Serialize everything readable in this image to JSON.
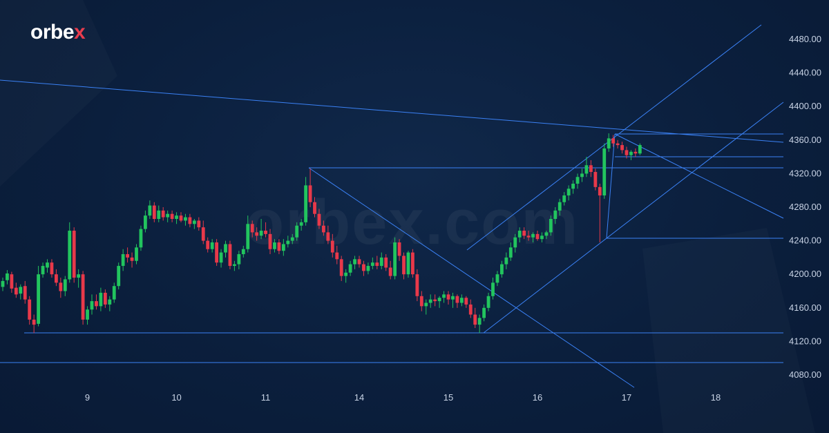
{
  "brand": {
    "logo_text_main": "orbe",
    "logo_text_accent": "x",
    "watermark": "orbex.com"
  },
  "colors": {
    "background": "#0b1f3d",
    "bull": "#22c55e",
    "bear": "#e8394a",
    "trendline": "#3b82f6",
    "axis_text": "#c9d4e6"
  },
  "chart_data": {
    "type": "candlestick",
    "title": "",
    "xlabel": "",
    "ylabel": "",
    "ylim": [
      4060,
      4500
    ],
    "y_ticks": [
      "4480.00",
      "4440.00",
      "4400.00",
      "4360.00",
      "4320.00",
      "4280.00",
      "4240.00",
      "4200.00",
      "4160.00",
      "4120.00",
      "4080.00"
    ],
    "y_tick_values": [
      4480,
      4440,
      4400,
      4360,
      4320,
      4280,
      4240,
      4200,
      4160,
      4120,
      4080
    ],
    "x_ticks": [
      "9",
      "10",
      "11",
      "14",
      "15",
      "16",
      "17",
      "18"
    ],
    "x_tick_index": [
      19,
      39,
      59,
      80,
      100,
      120,
      140,
      160
    ],
    "candles": [
      [
        4185,
        4196,
        4180,
        4192
      ],
      [
        4193,
        4205,
        4188,
        4201
      ],
      [
        4200,
        4203,
        4178,
        4183
      ],
      [
        4184,
        4190,
        4172,
        4176
      ],
      [
        4177,
        4188,
        4170,
        4185
      ],
      [
        4186,
        4192,
        4165,
        4170
      ],
      [
        4170,
        4174,
        4140,
        4146
      ],
      [
        4146,
        4152,
        4130,
        4140
      ],
      [
        4141,
        4210,
        4138,
        4200
      ],
      [
        4200,
        4214,
        4196,
        4210
      ],
      [
        4208,
        4218,
        4202,
        4214
      ],
      [
        4214,
        4218,
        4196,
        4200
      ],
      [
        4200,
        4206,
        4186,
        4190
      ],
      [
        4190,
        4196,
        4172,
        4180
      ],
      [
        4180,
        4198,
        4174,
        4194
      ],
      [
        4194,
        4262,
        4190,
        4252
      ],
      [
        4252,
        4256,
        4190,
        4196
      ],
      [
        4196,
        4206,
        4184,
        4200
      ],
      [
        4200,
        4204,
        4140,
        4146
      ],
      [
        4146,
        4162,
        4140,
        4158
      ],
      [
        4158,
        4176,
        4152,
        4168
      ],
      [
        4168,
        4176,
        4158,
        4162
      ],
      [
        4162,
        4184,
        4156,
        4178
      ],
      [
        4178,
        4182,
        4160,
        4164
      ],
      [
        4164,
        4174,
        4156,
        4170
      ],
      [
        4170,
        4190,
        4166,
        4186
      ],
      [
        4186,
        4214,
        4182,
        4210
      ],
      [
        4210,
        4230,
        4204,
        4224
      ],
      [
        4224,
        4232,
        4214,
        4220
      ],
      [
        4220,
        4226,
        4208,
        4216
      ],
      [
        4216,
        4236,
        4212,
        4232
      ],
      [
        4232,
        4258,
        4228,
        4254
      ],
      [
        4254,
        4276,
        4250,
        4270
      ],
      [
        4270,
        4288,
        4266,
        4282
      ],
      [
        4282,
        4286,
        4262,
        4266
      ],
      [
        4266,
        4282,
        4262,
        4276
      ],
      [
        4276,
        4280,
        4264,
        4268
      ],
      [
        4268,
        4276,
        4262,
        4272
      ],
      [
        4272,
        4276,
        4262,
        4266
      ],
      [
        4266,
        4274,
        4260,
        4270
      ],
      [
        4270,
        4274,
        4262,
        4264
      ],
      [
        4264,
        4272,
        4258,
        4268
      ],
      [
        4268,
        4272,
        4256,
        4260
      ],
      [
        4260,
        4266,
        4254,
        4264
      ],
      [
        4264,
        4268,
        4252,
        4256
      ],
      [
        4256,
        4264,
        4236,
        4240
      ],
      [
        4240,
        4244,
        4226,
        4230
      ],
      [
        4230,
        4242,
        4226,
        4238
      ],
      [
        4238,
        4242,
        4210,
        4214
      ],
      [
        4214,
        4230,
        4208,
        4226
      ],
      [
        4226,
        4240,
        4220,
        4236
      ],
      [
        4236,
        4240,
        4206,
        4210
      ],
      [
        4210,
        4216,
        4204,
        4212
      ],
      [
        4212,
        4228,
        4206,
        4224
      ],
      [
        4224,
        4234,
        4220,
        4230
      ],
      [
        4230,
        4270,
        4226,
        4260
      ],
      [
        4260,
        4264,
        4244,
        4250
      ],
      [
        4250,
        4256,
        4240,
        4246
      ],
      [
        4246,
        4266,
        4242,
        4252
      ],
      [
        4252,
        4262,
        4244,
        4248
      ],
      [
        4248,
        4254,
        4224,
        4230
      ],
      [
        4230,
        4242,
        4226,
        4238
      ],
      [
        4238,
        4242,
        4224,
        4228
      ],
      [
        4228,
        4242,
        4222,
        4236
      ],
      [
        4236,
        4246,
        4232,
        4240
      ],
      [
        4240,
        4248,
        4236,
        4244
      ],
      [
        4244,
        4262,
        4240,
        4258
      ],
      [
        4258,
        4266,
        4252,
        4262
      ],
      [
        4262,
        4316,
        4258,
        4306
      ],
      [
        4306,
        4326,
        4280,
        4286
      ],
      [
        4286,
        4292,
        4268,
        4272
      ],
      [
        4272,
        4278,
        4254,
        4258
      ],
      [
        4258,
        4264,
        4246,
        4250
      ],
      [
        4250,
        4258,
        4236,
        4240
      ],
      [
        4240,
        4248,
        4220,
        4226
      ],
      [
        4226,
        4234,
        4212,
        4218
      ],
      [
        4218,
        4222,
        4192,
        4198
      ],
      [
        4198,
        4206,
        4190,
        4202
      ],
      [
        4202,
        4216,
        4198,
        4212
      ],
      [
        4212,
        4222,
        4206,
        4218
      ],
      [
        4218,
        4222,
        4208,
        4212
      ],
      [
        4212,
        4216,
        4198,
        4204
      ],
      [
        4204,
        4214,
        4200,
        4210
      ],
      [
        4210,
        4220,
        4206,
        4214
      ],
      [
        4214,
        4222,
        4206,
        4210
      ],
      [
        4210,
        4226,
        4206,
        4220
      ],
      [
        4220,
        4224,
        4204,
        4208
      ],
      [
        4208,
        4216,
        4194,
        4198
      ],
      [
        4198,
        4244,
        4194,
        4238
      ],
      [
        4238,
        4242,
        4216,
        4222
      ],
      [
        4222,
        4226,
        4194,
        4200
      ],
      [
        4200,
        4228,
        4196,
        4226
      ],
      [
        4226,
        4230,
        4196,
        4200
      ],
      [
        4200,
        4206,
        4168,
        4174
      ],
      [
        4174,
        4180,
        4156,
        4162
      ],
      [
        4162,
        4170,
        4152,
        4166
      ],
      [
        4166,
        4176,
        4160,
        4170
      ],
      [
        4170,
        4176,
        4162,
        4168
      ],
      [
        4168,
        4174,
        4160,
        4172
      ],
      [
        4172,
        4180,
        4166,
        4176
      ],
      [
        4176,
        4180,
        4164,
        4170
      ],
      [
        4170,
        4178,
        4160,
        4174
      ],
      [
        4174,
        4176,
        4160,
        4166
      ],
      [
        4166,
        4176,
        4162,
        4172
      ],
      [
        4172,
        4174,
        4160,
        4164
      ],
      [
        4164,
        4170,
        4148,
        4152
      ],
      [
        4152,
        4160,
        4136,
        4140
      ],
      [
        4140,
        4152,
        4130,
        4148
      ],
      [
        4148,
        4164,
        4144,
        4160
      ],
      [
        4160,
        4178,
        4156,
        4174
      ],
      [
        4174,
        4196,
        4170,
        4190
      ],
      [
        4190,
        4204,
        4186,
        4200
      ],
      [
        4200,
        4216,
        4196,
        4212
      ],
      [
        4212,
        4226,
        4206,
        4220
      ],
      [
        4220,
        4238,
        4216,
        4232
      ],
      [
        4232,
        4248,
        4226,
        4244
      ],
      [
        4244,
        4256,
        4238,
        4252
      ],
      [
        4252,
        4256,
        4242,
        4246
      ],
      [
        4246,
        4252,
        4240,
        4244
      ],
      [
        4244,
        4250,
        4238,
        4248
      ],
      [
        4248,
        4252,
        4240,
        4242
      ],
      [
        4242,
        4250,
        4238,
        4246
      ],
      [
        4246,
        4252,
        4242,
        4250
      ],
      [
        4250,
        4270,
        4246,
        4266
      ],
      [
        4266,
        4280,
        4260,
        4276
      ],
      [
        4276,
        4290,
        4270,
        4286
      ],
      [
        4286,
        4298,
        4282,
        4294
      ],
      [
        4294,
        4306,
        4288,
        4302
      ],
      [
        4302,
        4312,
        4296,
        4308
      ],
      [
        4308,
        4320,
        4302,
        4316
      ],
      [
        4316,
        4326,
        4310,
        4320
      ],
      [
        4320,
        4340,
        4316,
        4330
      ],
      [
        4330,
        4336,
        4316,
        4322
      ],
      [
        4322,
        4326,
        4300,
        4304
      ],
      [
        4304,
        4308,
        4238,
        4294
      ],
      [
        4294,
        4356,
        4290,
        4350
      ],
      [
        4350,
        4368,
        4346,
        4362
      ],
      [
        4362,
        4366,
        4352,
        4356
      ],
      [
        4356,
        4360,
        4350,
        4354
      ],
      [
        4354,
        4358,
        4344,
        4348
      ],
      [
        4348,
        4352,
        4338,
        4342
      ],
      [
        4342,
        4348,
        4336,
        4346
      ],
      [
        4346,
        4350,
        4340,
        4344
      ],
      [
        4344,
        4356,
        4342,
        4354
      ]
    ],
    "y_markers": [
      4366,
      4340,
      4327,
      4243,
      4131,
      4094
    ]
  }
}
